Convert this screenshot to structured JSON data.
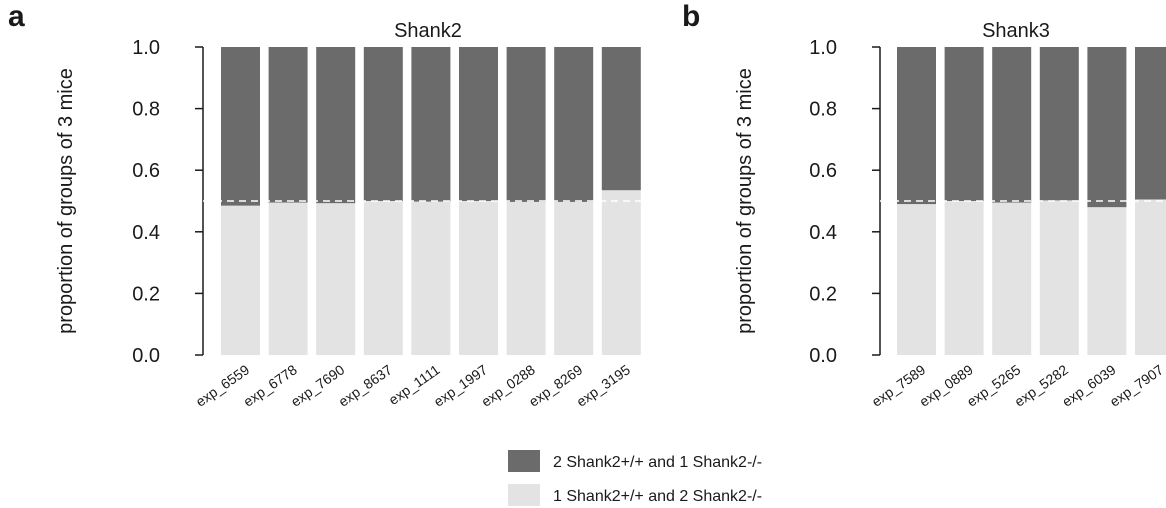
{
  "colors": {
    "dark": "#6b6b6b",
    "light": "#e3e3e3",
    "axis": "#1a1a1a",
    "reference_line": "#ffffff"
  },
  "legend": [
    {
      "label": "2 Shank2+/+ and 1 Shank2-/-",
      "color": "#6b6b6b"
    },
    {
      "label": "1 Shank2+/+ and 2 Shank2-/-",
      "color": "#e3e3e3"
    }
  ],
  "chart_data": [
    {
      "panel": "a",
      "type": "bar",
      "stacked": true,
      "title": "Shank2",
      "ylabel": "proportion of groups of 3 mice",
      "xlabel": "",
      "ylim": [
        0,
        1
      ],
      "yticks": [
        "0.0",
        "0.2",
        "0.4",
        "0.6",
        "0.8",
        "1.0"
      ],
      "reference_line": 0.5,
      "categories": [
        "exp_6559",
        "exp_6778",
        "exp_7690",
        "exp_8637",
        "exp_1111",
        "exp_1997",
        "exp_0288",
        "exp_8269",
        "exp_3195"
      ],
      "series": [
        {
          "name": "1 Shank2+/+ and 2 Shank2-/-",
          "values": [
            0.485,
            0.495,
            0.493,
            0.5,
            0.498,
            0.5,
            0.497,
            0.497,
            0.535
          ]
        },
        {
          "name": "2 Shank2+/+ and 1 Shank2-/-",
          "values": [
            0.515,
            0.505,
            0.507,
            0.5,
            0.502,
            0.5,
            0.503,
            0.503,
            0.465
          ]
        }
      ]
    },
    {
      "panel": "b",
      "type": "bar",
      "stacked": true,
      "title": "Shank3",
      "ylabel": "proportion of groups of 3 mice",
      "xlabel": "",
      "ylim": [
        0,
        1
      ],
      "yticks": [
        "0.0",
        "0.2",
        "0.4",
        "0.6",
        "0.8",
        "1.0"
      ],
      "reference_line": 0.5,
      "categories": [
        "exp_7589",
        "exp_0889",
        "exp_5265",
        "exp_5282",
        "exp_6039",
        "exp_7907"
      ],
      "series": [
        {
          "name": "1 Shank2+/+ and 2 Shank2-/-",
          "values": [
            0.49,
            0.5,
            0.495,
            0.502,
            0.48,
            0.505
          ]
        },
        {
          "name": "2 Shank2+/+ and 1 Shank2-/-",
          "values": [
            0.51,
            0.5,
            0.505,
            0.498,
            0.52,
            0.495
          ]
        }
      ]
    }
  ]
}
